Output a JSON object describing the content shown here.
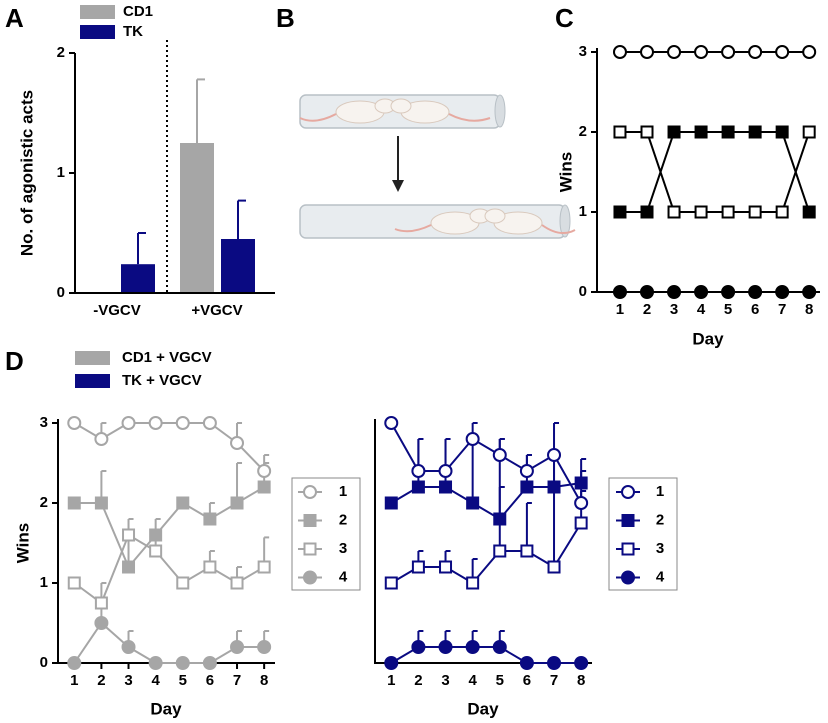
{
  "panel_labels": [
    "A",
    "B",
    "C",
    "D"
  ],
  "group_legend": [
    {
      "name": "CD1 + VGCV",
      "color": "#a6a6a6"
    },
    {
      "name": "TK + VGCV",
      "color": "#0a0a82"
    }
  ],
  "chart_data": [
    {
      "type": "bar",
      "ylabel": "No. of agonistic acts",
      "categories": [
        "-VGCV",
        "+VGCV"
      ],
      "series": [
        {
          "name": "CD1",
          "color": "#a6a6a6",
          "values": [
            0,
            1.25
          ],
          "errors": [
            null,
            0.53
          ]
        },
        {
          "name": "TK",
          "color": "#0a0a82",
          "values": [
            0.24,
            0.45
          ],
          "errors": [
            0.26,
            0.32
          ]
        }
      ],
      "ylim": [
        0,
        2
      ],
      "yticks": [
        0,
        1,
        2
      ],
      "legend": "top-left"
    },
    {
      "type": "line",
      "xlabel": "Day",
      "ylabel": "Wins",
      "x": [
        1,
        2,
        3,
        4,
        5,
        6,
        7,
        8
      ],
      "series": [
        {
          "color": "#000000",
          "marker": "circle",
          "filled": false,
          "values": [
            3,
            3,
            3,
            3,
            3,
            3,
            3,
            3
          ]
        },
        {
          "color": "#000000",
          "marker": "square",
          "filled": false,
          "values": [
            2,
            2,
            1,
            1,
            1,
            1,
            1,
            2
          ]
        },
        {
          "color": "#000000",
          "marker": "square",
          "filled": true,
          "values": [
            1,
            1,
            2,
            2,
            2,
            2,
            2,
            1
          ]
        },
        {
          "color": "#000000",
          "marker": "circle",
          "filled": true,
          "values": [
            0,
            0,
            0,
            0,
            0,
            0,
            0,
            0
          ]
        }
      ],
      "xlim": [
        0.15,
        8.4
      ],
      "ylim": [
        0,
        3
      ],
      "xticks": [
        1,
        2,
        3,
        4,
        5,
        6,
        7,
        8
      ],
      "yticks": [
        0,
        1,
        2,
        3
      ]
    },
    {
      "type": "line",
      "xlabel": "Day",
      "ylabel": "Wins",
      "x": [
        1,
        2,
        3,
        4,
        5,
        6,
        7,
        8
      ],
      "series": [
        {
          "name": "1",
          "color": "#a6a6a6",
          "marker": "circle",
          "filled": false,
          "values": [
            3,
            2.8,
            3,
            3,
            3,
            3,
            2.75,
            2.4
          ],
          "errors": [
            null,
            0.2,
            null,
            null,
            null,
            null,
            0.25,
            0.2
          ]
        },
        {
          "name": "2",
          "color": "#a6a6a6",
          "marker": "square",
          "filled": true,
          "values": [
            2,
            2,
            1.2,
            1.6,
            2,
            1.8,
            2,
            2.2
          ],
          "errors": [
            null,
            0.4,
            0.4,
            null,
            null,
            0.2,
            0.5,
            0.3
          ]
        },
        {
          "name": "3",
          "color": "#a6a6a6",
          "marker": "square",
          "filled": false,
          "values": [
            1,
            0.75,
            1.6,
            1.4,
            1,
            1.2,
            1,
            1.2
          ],
          "errors": [
            null,
            0.25,
            0.2,
            0.4,
            null,
            0.2,
            0.2,
            0.37
          ]
        },
        {
          "name": "4",
          "color": "#a6a6a6",
          "marker": "circle",
          "filled": true,
          "values": [
            0,
            0.5,
            0.2,
            0,
            0,
            0,
            0.2,
            0.2
          ],
          "errors": [
            null,
            0.25,
            0.2,
            null,
            null,
            null,
            0.2,
            0.2
          ]
        }
      ],
      "xlim": [
        0.4,
        8.4
      ],
      "ylim": [
        0,
        3
      ],
      "xticks": [
        1,
        2,
        3,
        4,
        5,
        6,
        7,
        8
      ],
      "yticks": [
        0,
        1,
        2,
        3
      ],
      "legend": "right"
    },
    {
      "type": "line",
      "xlabel": "Day",
      "x": [
        1,
        2,
        3,
        4,
        5,
        6,
        7,
        8
      ],
      "series": [
        {
          "name": "1",
          "color": "#0a0a82",
          "marker": "circle",
          "filled": false,
          "values": [
            3,
            2.4,
            2.4,
            2.8,
            2.6,
            2.4,
            2.6,
            2
          ],
          "errors": [
            null,
            0.4,
            0.4,
            0.2,
            0.2,
            0.2,
            0.4,
            0.4
          ]
        },
        {
          "name": "2",
          "color": "#0a0a82",
          "marker": "square",
          "filled": true,
          "values": [
            2,
            2.2,
            2.2,
            2,
            1.8,
            2.2,
            2.2,
            2.25
          ],
          "errors": [
            null,
            0.6,
            0.6,
            0.8,
            1,
            0.4,
            0.4,
            0.3
          ]
        },
        {
          "name": "3",
          "color": "#0a0a82",
          "marker": "square",
          "filled": false,
          "values": [
            1,
            1.2,
            1.2,
            1,
            1.4,
            1.4,
            1.2,
            1.75
          ],
          "errors": [
            null,
            0.2,
            0.2,
            0.3,
            0.8,
            0.6,
            1.4,
            0.4
          ]
        },
        {
          "name": "4",
          "color": "#0a0a82",
          "marker": "circle",
          "filled": true,
          "values": [
            0,
            0.2,
            0.2,
            0.2,
            0.2,
            0,
            0,
            0
          ],
          "errors": [
            null,
            0.2,
            0.2,
            0.2,
            0.2,
            null,
            null,
            null
          ]
        }
      ],
      "xlim": [
        0.4,
        8.4
      ],
      "ylim": [
        0,
        3
      ],
      "legend": "right"
    }
  ]
}
